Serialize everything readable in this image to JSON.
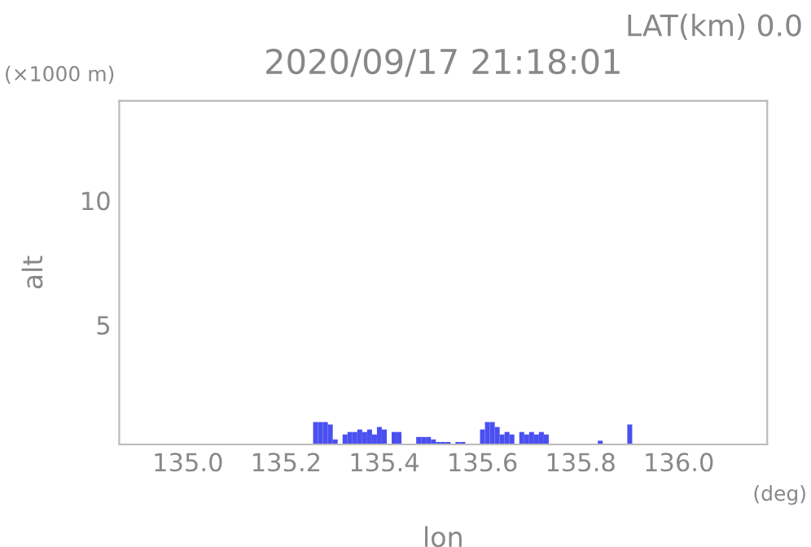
{
  "chart_data": {
    "type": "bar",
    "title": "2020/09/17 21:18:01",
    "xlabel": "lon",
    "ylabel": "alt",
    "annotations": [
      "LAT(km) 0.0",
      "(×1000 m)",
      "(deg)"
    ],
    "x": [
      135.26,
      135.27,
      135.28,
      135.29,
      135.3,
      135.32,
      135.33,
      135.34,
      135.35,
      135.36,
      135.37,
      135.38,
      135.39,
      135.4,
      135.42,
      135.43,
      135.47,
      135.48,
      135.49,
      135.5,
      135.51,
      135.52,
      135.53,
      135.55,
      135.56,
      135.6,
      135.61,
      135.62,
      135.63,
      135.64,
      135.65,
      135.66,
      135.68,
      135.69,
      135.7,
      135.71,
      135.72,
      135.73,
      135.84,
      135.9
    ],
    "values": [
      1.1,
      1.1,
      1.1,
      1.0,
      0.4,
      0.6,
      0.7,
      0.7,
      0.8,
      0.7,
      0.8,
      0.6,
      0.9,
      0.8,
      0.7,
      0.7,
      0.5,
      0.5,
      0.5,
      0.4,
      0.3,
      0.3,
      0.3,
      0.3,
      0.3,
      0.8,
      1.1,
      1.1,
      0.9,
      0.6,
      0.7,
      0.6,
      0.7,
      0.6,
      0.7,
      0.6,
      0.7,
      0.6,
      0.35,
      1.0
    ],
    "color": "#4a50f0",
    "xlim": [
      134.86,
      136.18
    ],
    "xticks": [
      {
        "value": 135.0,
        "label": "135.0"
      },
      {
        "value": 135.2,
        "label": "135.2"
      },
      {
        "value": 135.4,
        "label": "135.4"
      },
      {
        "value": 135.6,
        "label": "135.6"
      },
      {
        "value": 135.8,
        "label": "135.8"
      },
      {
        "value": 136.0,
        "label": "136.0"
      }
    ],
    "ylim": [
      0.2,
      14
    ],
    "yticks": [
      5,
      10
    ],
    "grid": false
  }
}
